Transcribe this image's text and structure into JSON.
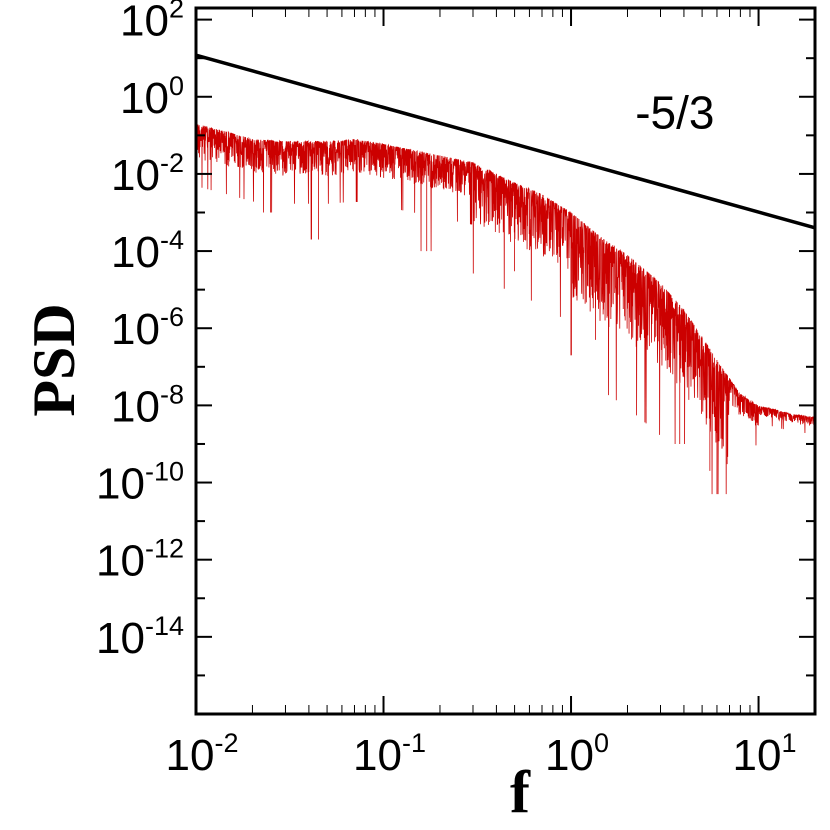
{
  "chart_data": {
    "type": "line",
    "xlabel": "f",
    "ylabel": "PSD",
    "xscale": "log",
    "yscale": "log",
    "xlim": [
      0.01,
      20
    ],
    "ylim": [
      1e-16,
      200
    ],
    "x_ticks": [
      {
        "base": "10",
        "exp": "-2",
        "value": 0.01
      },
      {
        "base": "10",
        "exp": "-1",
        "value": 0.1
      },
      {
        "base": "10",
        "exp": "0",
        "value": 1
      },
      {
        "base": "10",
        "exp": "1",
        "value": 10
      }
    ],
    "y_ticks": [
      {
        "base": "10",
        "exp": "2",
        "value": 100
      },
      {
        "base": "10",
        "exp": "0",
        "value": 1
      },
      {
        "base": "10",
        "exp": "-2",
        "value": 0.01
      },
      {
        "base": "10",
        "exp": "-4",
        "value": 0.0001
      },
      {
        "base": "10",
        "exp": "-6",
        "value": 1e-06
      },
      {
        "base": "10",
        "exp": "-8",
        "value": 1e-08
      },
      {
        "base": "10",
        "exp": "-10",
        "value": 1e-10
      },
      {
        "base": "10",
        "exp": "-12",
        "value": 1e-12
      },
      {
        "base": "10",
        "exp": "-14",
        "value": 1e-14
      }
    ],
    "grid": false,
    "legend": "none",
    "series": [
      {
        "color": "#cc0000",
        "envelope_upper": [
          [
            0.01,
            0.2
          ],
          [
            0.015,
            0.12
          ],
          [
            0.02,
            0.08
          ],
          [
            0.03,
            0.07
          ],
          [
            0.05,
            0.07
          ],
          [
            0.07,
            0.08
          ],
          [
            0.1,
            0.06
          ],
          [
            0.15,
            0.04
          ],
          [
            0.2,
            0.03
          ],
          [
            0.3,
            0.02
          ],
          [
            0.4,
            0.01
          ],
          [
            0.5,
            0.006
          ],
          [
            0.7,
            0.003
          ],
          [
            1.0,
            0.001
          ],
          [
            1.5,
            0.0002
          ],
          [
            2.0,
            8e-05
          ],
          [
            3.0,
            1.5e-05
          ],
          [
            4.0,
            3e-06
          ],
          [
            5.0,
            6e-07
          ],
          [
            6.0,
            1.5e-07
          ],
          [
            7.0,
            5e-08
          ],
          [
            8.0,
            2e-08
          ],
          [
            10.0,
            1e-08
          ],
          [
            15.0,
            6e-09
          ],
          [
            20.0,
            5e-09
          ]
        ],
        "dips": [
          [
            0.025,
            0.001
          ],
          [
            0.045,
            0.0002
          ],
          [
            0.17,
            0.0001
          ],
          [
            0.5,
            3e-05
          ],
          [
            1.0,
            2e-07
          ],
          [
            1.35,
            5e-07
          ],
          [
            3.8,
            1e-09
          ],
          [
            5.5,
            2e-10
          ],
          [
            6.0,
            5e-11
          ],
          [
            6.8,
            3e-10
          ]
        ]
      },
      {
        "color": "#000000",
        "x": [
          0.01,
          20
        ],
        "y": [
          12,
          0.0004
        ]
      }
    ],
    "annotations": [
      {
        "text": "-5/3",
        "x": 2.2,
        "y": 0.15
      }
    ]
  }
}
